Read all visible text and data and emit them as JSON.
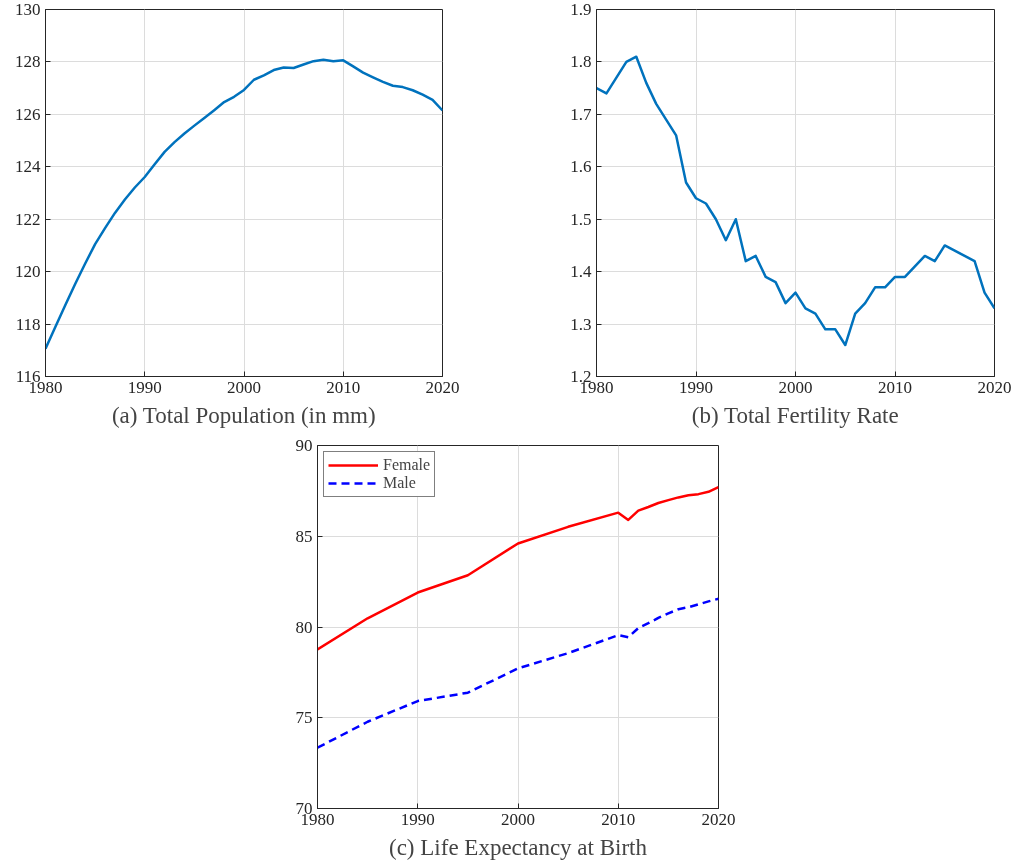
{
  "chart_data": [
    {
      "type": "line",
      "title": "(a) Total Population (in mm)",
      "x": [
        1980,
        1981,
        1982,
        1983,
        1984,
        1985,
        1986,
        1987,
        1988,
        1989,
        1990,
        1991,
        1992,
        1993,
        1994,
        1995,
        1996,
        1997,
        1998,
        1999,
        2000,
        2001,
        2002,
        2003,
        2004,
        2005,
        2006,
        2007,
        2008,
        2009,
        2010,
        2011,
        2012,
        2013,
        2014,
        2015,
        2016,
        2017,
        2018,
        2019,
        2020
      ],
      "series": [
        {
          "color": "#0072bd",
          "values": [
            117.06,
            117.9,
            118.73,
            119.54,
            120.31,
            121.05,
            121.66,
            122.24,
            122.75,
            123.21,
            123.61,
            124.1,
            124.57,
            124.94,
            125.27,
            125.57,
            125.86,
            126.16,
            126.47,
            126.67,
            126.93,
            127.32,
            127.49,
            127.69,
            127.79,
            127.77,
            127.9,
            128.03,
            128.08,
            128.03,
            128.06,
            127.83,
            127.59,
            127.41,
            127.24,
            127.09,
            127.04,
            126.92,
            126.75,
            126.55,
            126.15
          ]
        }
      ],
      "xlim": [
        1980,
        2020
      ],
      "xticks": [
        1980,
        1990,
        2000,
        2010,
        2020
      ],
      "ylim": [
        116,
        130
      ],
      "yticks": [
        116,
        118,
        120,
        122,
        124,
        126,
        128,
        130
      ],
      "grid": true
    },
    {
      "type": "line",
      "title": "(b) Total Fertility Rate",
      "x": [
        1980,
        1981,
        1982,
        1983,
        1984,
        1985,
        1986,
        1987,
        1988,
        1989,
        1990,
        1991,
        1992,
        1993,
        1994,
        1995,
        1996,
        1997,
        1998,
        1999,
        2000,
        2001,
        2002,
        2003,
        2004,
        2005,
        2006,
        2007,
        2008,
        2009,
        2010,
        2011,
        2012,
        2013,
        2014,
        2015,
        2016,
        2017,
        2018,
        2019,
        2020
      ],
      "series": [
        {
          "color": "#0072bd",
          "values": [
            1.75,
            1.74,
            1.77,
            1.8,
            1.81,
            1.76,
            1.72,
            1.69,
            1.66,
            1.57,
            1.54,
            1.53,
            1.5,
            1.46,
            1.5,
            1.42,
            1.43,
            1.39,
            1.38,
            1.34,
            1.36,
            1.33,
            1.32,
            1.29,
            1.29,
            1.26,
            1.32,
            1.34,
            1.37,
            1.37,
            1.39,
            1.39,
            1.41,
            1.43,
            1.42,
            1.45,
            1.44,
            1.43,
            1.42,
            1.36,
            1.33
          ]
        }
      ],
      "xlim": [
        1980,
        2020
      ],
      "xticks": [
        1980,
        1990,
        2000,
        2010,
        2020
      ],
      "ylim": [
        1.2,
        1.9
      ],
      "yticks": [
        {
          "value": 1.2,
          "label": "1.2"
        },
        {
          "value": 1.3,
          "label": "1.3"
        },
        {
          "value": 1.4,
          "label": "1.4"
        },
        {
          "value": 1.5,
          "label": "1.5"
        },
        {
          "value": 1.6,
          "label": "1.6"
        },
        {
          "value": 1.7,
          "label": "1.7"
        },
        {
          "value": 1.8,
          "label": "1.8"
        },
        {
          "value": 1.9,
          "label": "1.9"
        }
      ],
      "grid": true
    },
    {
      "type": "line",
      "title": "(c) Life Expectancy at Birth",
      "x": [
        1980,
        1985,
        1990,
        1995,
        2000,
        2005,
        2010,
        2011,
        2012,
        2013,
        2014,
        2015,
        2016,
        2017,
        2018,
        2019,
        2020
      ],
      "series": [
        {
          "name": "Female",
          "color": "#ff0000",
          "line_style": "solid",
          "values": [
            78.76,
            80.48,
            81.9,
            82.85,
            84.6,
            85.52,
            86.3,
            85.9,
            86.41,
            86.61,
            86.83,
            86.99,
            87.14,
            87.26,
            87.32,
            87.45,
            87.71
          ]
        },
        {
          "name": "Male",
          "color": "#0000ff",
          "line_style": "dashed",
          "values": [
            73.35,
            74.78,
            75.92,
            76.38,
            77.72,
            78.56,
            79.55,
            79.44,
            79.94,
            80.21,
            80.5,
            80.75,
            80.98,
            81.09,
            81.25,
            81.41,
            81.56
          ]
        }
      ],
      "xlim": [
        1980,
        2020
      ],
      "xticks": [
        1980,
        1990,
        2000,
        2010,
        2020
      ],
      "ylim": [
        70,
        90
      ],
      "yticks": [
        70,
        75,
        80,
        85,
        90
      ],
      "grid": true,
      "legend": "top left"
    }
  ]
}
